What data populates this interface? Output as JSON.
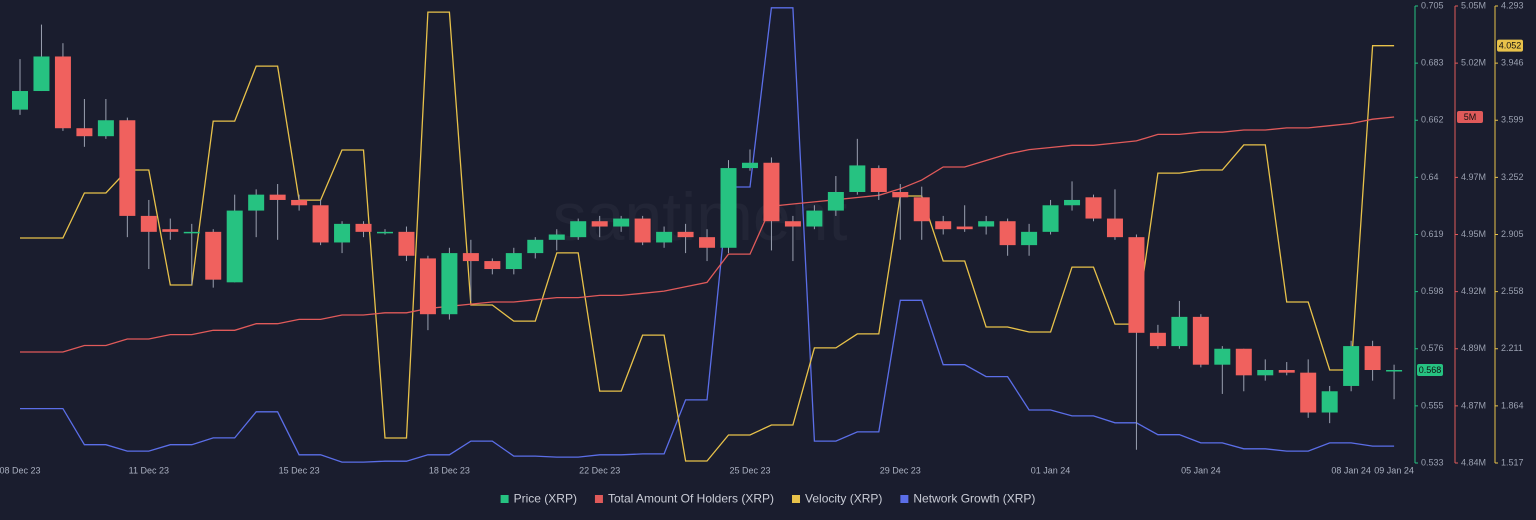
{
  "chart_data": {
    "type": "candlestick",
    "watermark": "santiment",
    "categories": [
      "08 Dec 23",
      null,
      null,
      null,
      null,
      null,
      "11 Dec 23",
      null,
      null,
      null,
      null,
      null,
      null,
      "15 Dec 23",
      null,
      null,
      null,
      null,
      null,
      null,
      "18 Dec 23",
      null,
      null,
      null,
      null,
      null,
      null,
      "22 Dec 23",
      null,
      null,
      null,
      null,
      null,
      null,
      "25 Dec 23",
      null,
      null,
      null,
      null,
      null,
      null,
      "29 Dec 23",
      null,
      null,
      null,
      null,
      null,
      null,
      "01 Jan 24",
      null,
      null,
      null,
      null,
      null,
      null,
      "05 Jan 24",
      null,
      null,
      null,
      null,
      null,
      null,
      "08 Jan 24",
      null,
      "09 Jan 24"
    ],
    "ylim": [
      0.533,
      0.705
    ],
    "yticks": [
      0.533,
      {
        "value": 0.5545,
        "label": "0.555"
      },
      0.576,
      {
        "value": 0.5975,
        "label": "0.598"
      },
      0.619,
      {
        "value": 0.6405,
        "label": "0.64"
      },
      0.662,
      {
        "value": 0.6835,
        "label": "0.683"
      },
      0.705
    ],
    "y2lim": [
      4840000,
      5050000
    ],
    "y2ticks": [
      {
        "value": 4840000,
        "label": "4.84M"
      },
      {
        "value": 4866250,
        "label": "4.87M"
      },
      {
        "value": 4892500,
        "label": "4.89M"
      },
      {
        "value": 4918750,
        "label": "4.92M"
      },
      {
        "value": 4945000,
        "label": "4.95M"
      },
      {
        "value": 4971250,
        "label": "4.97M"
      },
      {
        "value": 5023750,
        "label": "5.02M"
      },
      {
        "value": 5050000,
        "label": "5.05M"
      }
    ],
    "y3lim": [
      1.517,
      4.293
    ],
    "y3ticks": [
      1.517,
      1.864,
      2.211,
      2.558,
      2.905,
      3.252,
      3.599,
      3.946,
      4.293
    ],
    "y4lim": [
      0,
      100
    ],
    "grid": false,
    "legend": "bottom",
    "series": [
      {
        "name": "Price (XRP)",
        "type": "candlestick",
        "color": "#26c281",
        "down_color": "#f0615e",
        "current_label": "0.568",
        "open": [
          0.666,
          0.673,
          0.686,
          0.659,
          0.656,
          0.662,
          0.626,
          0.621,
          0.62,
          0.62,
          0.601,
          0.628,
          0.634,
          0.632,
          0.63,
          0.616,
          0.623,
          0.62,
          0.62,
          0.61,
          0.589,
          0.612,
          0.609,
          0.606,
          0.612,
          0.617,
          0.618,
          0.624,
          0.622,
          0.625,
          0.616,
          0.62,
          0.618,
          0.614,
          0.644,
          0.646,
          0.624,
          0.622,
          0.628,
          0.635,
          0.644,
          0.635,
          0.633,
          0.624,
          0.622,
          0.622,
          0.624,
          0.615,
          0.62,
          0.63,
          0.633,
          0.625,
          0.618,
          0.582,
          0.577,
          0.588,
          0.57,
          0.576,
          0.566,
          0.568,
          0.567,
          0.552,
          0.562,
          0.577,
          0.568
        ],
        "high": [
          0.685,
          0.698,
          0.691,
          0.67,
          0.67,
          0.663,
          0.632,
          0.625,
          0.623,
          0.621,
          0.634,
          0.636,
          0.638,
          0.634,
          0.632,
          0.624,
          0.624,
          0.621,
          0.622,
          0.611,
          0.614,
          0.617,
          0.61,
          0.614,
          0.618,
          0.621,
          0.625,
          0.626,
          0.626,
          0.626,
          0.622,
          0.623,
          0.621,
          0.647,
          0.651,
          0.648,
          0.626,
          0.63,
          0.641,
          0.655,
          0.645,
          0.638,
          0.637,
          0.626,
          0.63,
          0.626,
          0.625,
          0.623,
          0.632,
          0.639,
          0.634,
          0.636,
          0.619,
          0.585,
          0.594,
          0.589,
          0.577,
          0.576,
          0.572,
          0.571,
          0.572,
          0.562,
          0.579,
          0.579,
          0.57
        ],
        "low": [
          0.664,
          0.673,
          0.658,
          0.652,
          0.655,
          0.618,
          0.606,
          0.617,
          0.6,
          0.599,
          0.601,
          0.618,
          0.617,
          0.628,
          0.615,
          0.612,
          0.618,
          0.619,
          0.609,
          0.583,
          0.587,
          0.594,
          0.604,
          0.604,
          0.61,
          0.613,
          0.617,
          0.618,
          0.62,
          0.615,
          0.614,
          0.612,
          0.609,
          0.612,
          0.643,
          0.613,
          0.609,
          0.621,
          0.626,
          0.634,
          0.632,
          0.617,
          0.617,
          0.619,
          0.62,
          0.619,
          0.611,
          0.611,
          0.619,
          0.628,
          0.624,
          0.617,
          0.538,
          0.576,
          0.576,
          0.569,
          0.559,
          0.56,
          0.564,
          0.566,
          0.55,
          0.548,
          0.56,
          0.564,
          0.557
        ],
        "close": [
          0.673,
          0.686,
          0.659,
          0.656,
          0.662,
          0.626,
          0.62,
          0.62,
          0.62,
          0.602,
          0.628,
          0.634,
          0.632,
          0.63,
          0.616,
          0.623,
          0.62,
          0.62,
          0.611,
          0.589,
          0.612,
          0.609,
          0.606,
          0.612,
          0.617,
          0.619,
          0.624,
          0.622,
          0.625,
          0.616,
          0.62,
          0.618,
          0.614,
          0.644,
          0.646,
          0.624,
          0.622,
          0.628,
          0.635,
          0.645,
          0.635,
          0.633,
          0.624,
          0.621,
          0.621,
          0.624,
          0.615,
          0.62,
          0.63,
          0.632,
          0.625,
          0.618,
          0.582,
          0.577,
          0.588,
          0.57,
          0.576,
          0.566,
          0.568,
          0.567,
          0.552,
          0.56,
          0.577,
          0.568,
          0.568
        ]
      },
      {
        "name": "Total Amount Of Holders (XRP)",
        "type": "line",
        "axis": "y2",
        "color": "#e05a5a",
        "current_label": "5M",
        "values": [
          4891000,
          4891000,
          4891000,
          4894000,
          4894000,
          4897000,
          4897000,
          4899000,
          4899000,
          4901000,
          4901000,
          4904000,
          4904000,
          4906000,
          4906000,
          4908000,
          4908000,
          4909000,
          4909000,
          4911000,
          4912000,
          4913000,
          4914000,
          4914000,
          4915000,
          4916000,
          4916000,
          4917000,
          4917000,
          4918000,
          4919000,
          4921000,
          4923000,
          4936000,
          4936000,
          4958000,
          4959000,
          4960000,
          4961000,
          4962000,
          4963000,
          4966000,
          4970000,
          4976000,
          4976000,
          4979000,
          4982000,
          4984000,
          4985000,
          4986000,
          4986000,
          4987000,
          4988000,
          4991000,
          4991000,
          4992000,
          4992000,
          4993000,
          4993000,
          4994000,
          4994000,
          4995000,
          4996000,
          4998000,
          4999000
        ]
      },
      {
        "name": "Velocity (XRP)",
        "type": "line",
        "axis": "y3",
        "color": "#e8c24a",
        "current_label": "4.052",
        "values": [
          2.884,
          2.884,
          2.884,
          3.157,
          3.157,
          3.297,
          3.297,
          2.598,
          2.598,
          3.594,
          3.594,
          3.928,
          3.928,
          3.114,
          3.114,
          3.418,
          3.418,
          1.669,
          1.669,
          4.256,
          4.256,
          2.477,
          2.477,
          2.379,
          2.379,
          2.793,
          2.793,
          1.954,
          1.954,
          2.294,
          2.294,
          1.529,
          1.529,
          1.687,
          1.687,
          1.748,
          1.748,
          2.216,
          2.216,
          2.301,
          2.301,
          3.139,
          3.139,
          2.744,
          2.744,
          2.343,
          2.343,
          2.313,
          2.313,
          2.707,
          2.707,
          2.361,
          2.361,
          3.278,
          3.278,
          3.297,
          3.297,
          3.449,
          3.449,
          2.495,
          2.495,
          2.082,
          2.082,
          4.052,
          4.052
        ]
      },
      {
        "name": "Network Growth (XRP)",
        "type": "line",
        "axis": "y4",
        "color": "#5b6ee8",
        "values": [
          11.9,
          11.9,
          11.9,
          4.0,
          4.0,
          2.6,
          2.6,
          4.0,
          4.0,
          5.5,
          5.5,
          11.2,
          11.2,
          1.8,
          1.8,
          0.2,
          0.2,
          0.4,
          0.4,
          1.8,
          1.8,
          4.8,
          4.8,
          1.5,
          1.5,
          1.3,
          1.3,
          1.8,
          1.8,
          2.0,
          2.0,
          13.8,
          13.8,
          60.4,
          60.4,
          99.6,
          99.6,
          4.8,
          4.8,
          6.8,
          6.8,
          35.6,
          35.6,
          21.5,
          21.5,
          18.9,
          18.9,
          11.6,
          11.6,
          10.3,
          10.3,
          8.8,
          8.8,
          6.2,
          6.2,
          4.4,
          4.4,
          3.1,
          3.1,
          2.6,
          2.6,
          4.4,
          4.4,
          3.7,
          3.7
        ]
      }
    ]
  }
}
